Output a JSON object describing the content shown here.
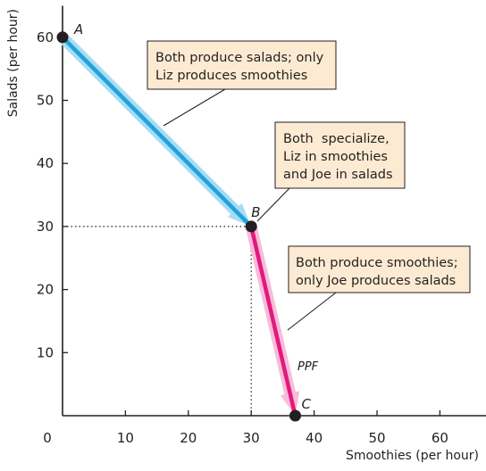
{
  "chart_data": {
    "type": "line",
    "title": "",
    "xlabel": "Smoothies (per hour)",
    "ylabel": "Salads (per hour)",
    "xlim": [
      0,
      68
    ],
    "ylim": [
      0,
      65
    ],
    "x_ticks": [
      "0",
      "10",
      "20",
      "30",
      "40",
      "50",
      "60"
    ],
    "y_ticks": [
      "10",
      "20",
      "30",
      "40",
      "50",
      "60"
    ],
    "grid": false,
    "series": [
      {
        "name": "PPF",
        "color": "#1fa3dc",
        "highlight_color": "#a8dcf3",
        "x": [
          0,
          30
        ],
        "y": [
          60,
          30
        ]
      },
      {
        "name": "PPF",
        "color": "#e3197d",
        "highlight_color": "#f7bcd9",
        "x": [
          30,
          37
        ],
        "y": [
          30,
          0
        ]
      }
    ],
    "curve_label": "PPF",
    "points": [
      {
        "label": "A",
        "x": 0,
        "y": 60
      },
      {
        "label": "B",
        "x": 30,
        "y": 30
      },
      {
        "label": "C",
        "x": 37,
        "y": 0
      }
    ],
    "reference_lines": {
      "x": 30,
      "y": 30
    },
    "annotations": [
      {
        "lines": [
          "Both produce salads; only",
          "Liz produces smoothies"
        ],
        "fill": "#fcebd2"
      },
      {
        "lines": [
          "Both  specialize,",
          "Liz in smoothies",
          "and Joe in salads"
        ],
        "fill": "#fcebd2"
      },
      {
        "lines": [
          "Both produce smoothies;",
          "only Joe produces salads"
        ],
        "fill": "#fcebd2"
      }
    ]
  }
}
